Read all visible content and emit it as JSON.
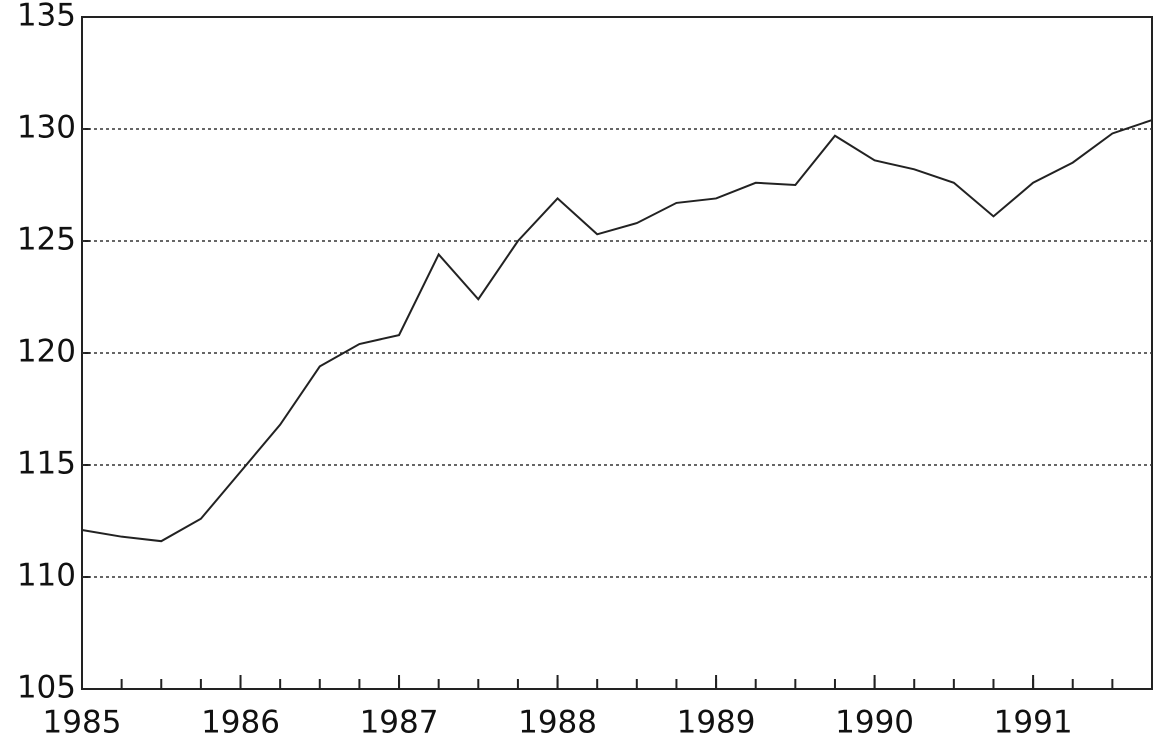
{
  "chart_data": {
    "type": "line",
    "x": [
      1985,
      1985.25,
      1985.5,
      1985.75,
      1986,
      1986.25,
      1986.5,
      1986.75,
      1987,
      1987.25,
      1987.5,
      1987.75,
      1988,
      1988.25,
      1988.5,
      1988.75,
      1989,
      1989.25,
      1989.5,
      1989.75,
      1990,
      1990.25,
      1990.5,
      1990.75,
      1991,
      1991.25,
      1991.5,
      1991.75
    ],
    "series": [
      {
        "color": "#222222",
        "values": [
          112.1,
          111.8,
          111.6,
          112.6,
          114.7,
          116.8,
          119.4,
          120.4,
          120.8,
          124.4,
          122.4,
          125.0,
          126.9,
          125.3,
          125.8,
          126.7,
          126.9,
          127.6,
          127.5,
          129.7,
          128.6,
          128.2,
          127.6,
          126.1,
          127.6,
          128.5,
          129.8,
          130.4
        ]
      }
    ],
    "xlim": [
      1985,
      1991.75
    ],
    "xticks": [
      1985,
      1986,
      1987,
      1988,
      1989,
      1990,
      1991
    ],
    "ylim": [
      105,
      135
    ],
    "yticks": [
      105,
      110,
      115,
      120,
      125,
      130,
      135
    ],
    "grid": true
  }
}
